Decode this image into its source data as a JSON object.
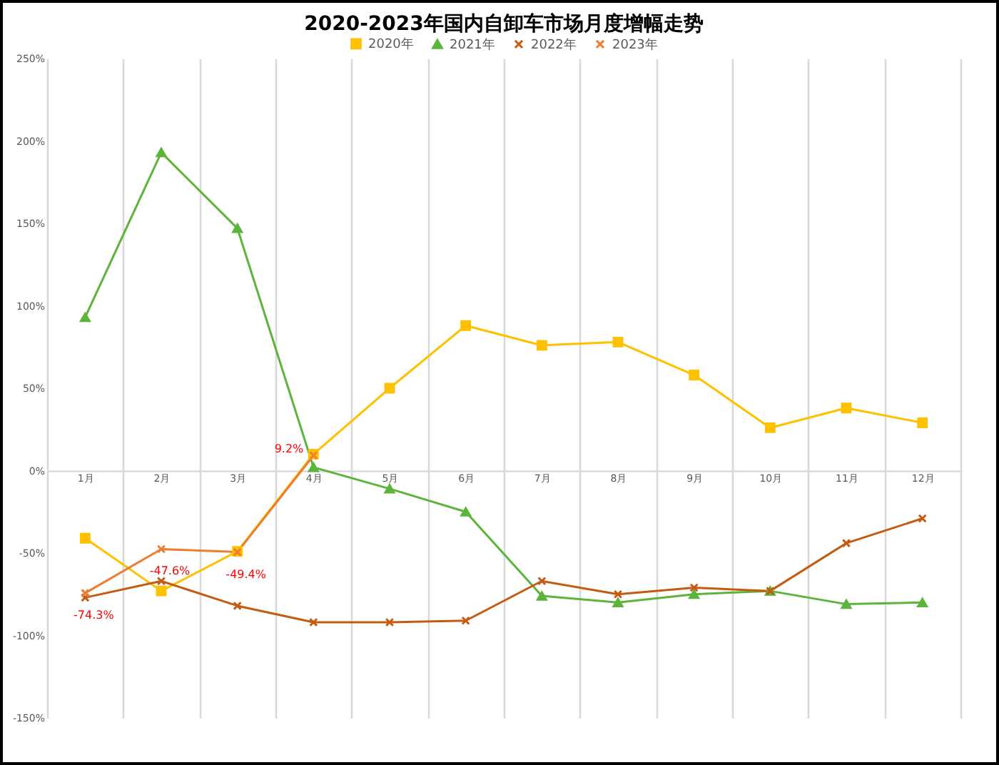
{
  "chart_data": {
    "type": "line",
    "title": "2020-2023年国内自卸车市场月度增幅走势",
    "categories": [
      "1月",
      "2月",
      "3月",
      "4月",
      "5月",
      "6月",
      "7月",
      "8月",
      "9月",
      "10月",
      "11月",
      "12月"
    ],
    "series": [
      {
        "name": "2020年",
        "color": "#ffc000",
        "marker": "square",
        "values": [
          -41,
          -73,
          -49,
          10,
          50,
          88,
          76,
          78,
          58,
          26,
          38,
          29
        ]
      },
      {
        "name": "2021年",
        "color": "#5cb53a",
        "marker": "triangle",
        "values": [
          93,
          193,
          147,
          2,
          -11,
          -25,
          -76,
          -80,
          -75,
          -73,
          -81,
          -80
        ]
      },
      {
        "name": "2022年",
        "color": "#c55a11",
        "marker": "cross",
        "values": [
          -77,
          -67,
          -82,
          -92,
          -92,
          -91,
          -67,
          -75,
          -71,
          -73,
          -44,
          -29
        ]
      },
      {
        "name": "2023年",
        "color": "#ed7d31",
        "marker": "cross",
        "values": [
          -74.3,
          -47.6,
          -49.4,
          9.2,
          null,
          null,
          null,
          null,
          null,
          null,
          null,
          null
        ],
        "value_labels": [
          "-74.3%",
          "-47.6%",
          "-49.4%",
          "9.2%",
          null,
          null,
          null,
          null,
          null,
          null,
          null,
          null
        ]
      }
    ],
    "ylim": [
      -150,
      250
    ],
    "yticks": [
      {
        "value": -150,
        "label": "-150%"
      },
      {
        "value": -100,
        "label": "-100%"
      },
      {
        "value": -50,
        "label": "-50%"
      },
      {
        "value": 0,
        "label": "0%"
      },
      {
        "value": 50,
        "label": "50%"
      },
      {
        "value": 100,
        "label": "100%"
      },
      {
        "value": 150,
        "label": "150%"
      },
      {
        "value": 200,
        "label": "200%"
      },
      {
        "value": 250,
        "label": "250%"
      }
    ],
    "grid": "x",
    "legend": "top"
  }
}
